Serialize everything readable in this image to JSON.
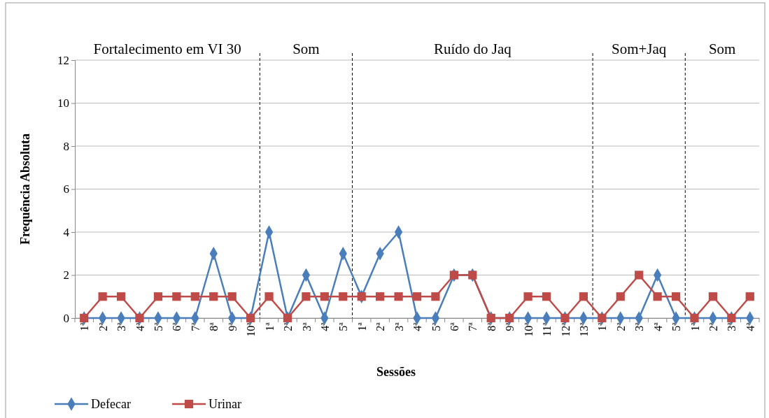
{
  "chart_data": {
    "type": "line",
    "xlabel": "Sessões",
    "ylabel": "Frequência Absoluta",
    "categories": [
      "1ª",
      "2ª",
      "3ª",
      "4ª",
      "5ª",
      "6ª",
      "7ª",
      "8ª",
      "9ª",
      "10ª",
      "1ª",
      "2ª",
      "3ª",
      "4ª",
      "5ª",
      "1ª",
      "2ª",
      "3ª",
      "4ª",
      "5ª",
      "6ª",
      "7ª",
      "8ª",
      "9ª",
      "10ª",
      "11ª",
      "12ª",
      "13ª",
      "1ª",
      "2ª",
      "3ª",
      "4ª",
      "5ª",
      "1ª",
      "2ª",
      "3ª",
      "4ª"
    ],
    "ylim": [
      0,
      12
    ],
    "yticks": [
      0,
      2,
      4,
      6,
      8,
      10,
      12
    ],
    "grid": "y",
    "legend": "bottom left",
    "series": [
      {
        "name": "Defecar",
        "color": "#4a7ebb",
        "marker": "diamond",
        "values": [
          0,
          0,
          0,
          0,
          0,
          0,
          0,
          3,
          0,
          0,
          4,
          0,
          2,
          0,
          3,
          1,
          3,
          4,
          0,
          0,
          2,
          2,
          0,
          0,
          0,
          0,
          0,
          0,
          0,
          0,
          0,
          2,
          0,
          0,
          0,
          0,
          0
        ]
      },
      {
        "name": "Urinar",
        "color": "#be4b48",
        "marker": "square",
        "values": [
          0,
          1,
          1,
          0,
          1,
          1,
          1,
          1,
          1,
          0,
          1,
          0,
          1,
          1,
          1,
          1,
          1,
          1,
          1,
          1,
          2,
          2,
          0,
          0,
          1,
          1,
          0,
          1,
          0,
          1,
          2,
          1,
          1,
          0,
          1,
          0,
          1
        ]
      }
    ],
    "annotations": [
      "Fortalecimento em VI 30",
      "Som",
      "Ruído do Jaq",
      "Som+Jaq",
      "Som"
    ]
  }
}
